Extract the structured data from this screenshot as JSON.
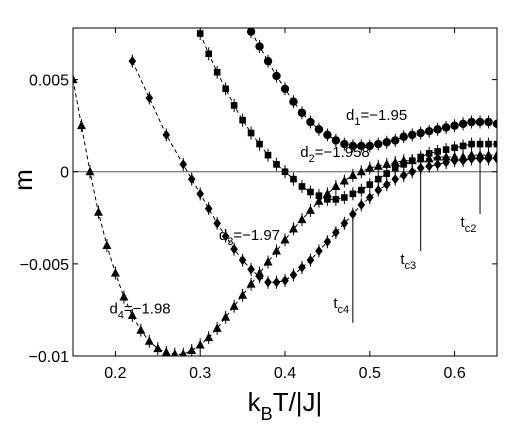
{
  "chart_data": {
    "type": "scatter",
    "xlabel": {
      "main": "k",
      "sub": "B",
      "rest": "T/|J|"
    },
    "ylabel": "m",
    "xlim": [
      0.15,
      0.65
    ],
    "ylim": [
      -0.01,
      0.0078
    ],
    "xticks": [
      {
        "value": 0.2,
        "label": "0.2"
      },
      {
        "value": 0.3,
        "label": "0.3"
      },
      {
        "value": 0.4,
        "label": "0.4"
      },
      {
        "value": 0.5,
        "label": "0.5"
      },
      {
        "value": 0.6,
        "label": "0.6"
      }
    ],
    "yticks": [
      {
        "value": 0.005,
        "label": "0.005"
      },
      {
        "value": 0,
        "label": "0"
      },
      {
        "value": -0.005,
        "label": "−0.005"
      },
      {
        "value": -0.01,
        "label": "−0.01"
      }
    ],
    "grid": false,
    "reference_line": 0,
    "series": [
      {
        "marker": "circle",
        "label": {
          "main": "d",
          "sub": "1",
          "rest": "=−1.95"
        },
        "label_at": [
          0.472,
          0.0028
        ],
        "x": [
          0.36,
          0.37,
          0.38,
          0.39,
          0.4,
          0.41,
          0.42,
          0.43,
          0.44,
          0.45,
          0.46,
          0.47,
          0.48,
          0.49,
          0.5,
          0.51,
          0.52,
          0.53,
          0.54,
          0.55,
          0.56,
          0.57,
          0.58,
          0.59,
          0.6,
          0.61,
          0.62,
          0.63,
          0.64,
          0.65
        ],
        "y": [
          0.0076,
          0.0068,
          0.006,
          0.0052,
          0.0045,
          0.0038,
          0.0032,
          0.0027,
          0.0023,
          0.002,
          0.0017,
          0.0015,
          0.0014,
          0.0014,
          0.0014,
          0.0015,
          0.0016,
          0.0017,
          0.0019,
          0.002,
          0.0021,
          0.0022,
          0.0023,
          0.0024,
          0.0025,
          0.0026,
          0.0027,
          0.0027,
          0.0027,
          0.0026
        ]
      },
      {
        "marker": "square",
        "label": {
          "main": "d",
          "sub": "2",
          "rest": "=−1.958"
        },
        "label_at": [
          0.418,
          0.0008
        ],
        "x": [
          0.3,
          0.31,
          0.32,
          0.33,
          0.34,
          0.35,
          0.36,
          0.37,
          0.38,
          0.39,
          0.4,
          0.41,
          0.42,
          0.43,
          0.44,
          0.45,
          0.46,
          0.47,
          0.48,
          0.49,
          0.5,
          0.51,
          0.52,
          0.53,
          0.54,
          0.55,
          0.56,
          0.57,
          0.58,
          0.59,
          0.6,
          0.61,
          0.62,
          0.63,
          0.64,
          0.65
        ],
        "y": [
          0.0075,
          0.0064,
          0.0054,
          0.0045,
          0.0036,
          0.0028,
          0.0021,
          0.0015,
          0.0009,
          0.0004,
          0.0,
          -0.0004,
          -0.0008,
          -0.0011,
          -0.0013,
          -0.0015,
          -0.0015,
          -0.0014,
          -0.0012,
          -0.001,
          -0.0007,
          -0.0004,
          -0.0001,
          0.0002,
          0.0004,
          0.0006,
          0.0008,
          0.001,
          0.0011,
          0.0012,
          0.0013,
          0.0014,
          0.0015,
          0.0015,
          0.0015,
          0.0015
        ]
      },
      {
        "marker": "diamond",
        "label": {
          "main": "d",
          "sub": "3",
          "rest": "=−1.97"
        },
        "label_at": [
          0.322,
          -0.0037
        ],
        "x": [
          0.22,
          0.24,
          0.26,
          0.28,
          0.29,
          0.3,
          0.31,
          0.32,
          0.33,
          0.34,
          0.35,
          0.36,
          0.37,
          0.38,
          0.39,
          0.4,
          0.41,
          0.42,
          0.43,
          0.44,
          0.45,
          0.46,
          0.47,
          0.48,
          0.49,
          0.5,
          0.51,
          0.52,
          0.53,
          0.54,
          0.55,
          0.56,
          0.57,
          0.58,
          0.59,
          0.6,
          0.61,
          0.62,
          0.63,
          0.64,
          0.65
        ],
        "y": [
          0.006,
          0.004,
          0.002,
          0.0004,
          -0.0004,
          -0.0012,
          -0.002,
          -0.0028,
          -0.0035,
          -0.0042,
          -0.0048,
          -0.0053,
          -0.0057,
          -0.006,
          -0.006,
          -0.0059,
          -0.0056,
          -0.0052,
          -0.0048,
          -0.0043,
          -0.0038,
          -0.0033,
          -0.0028,
          -0.0023,
          -0.0018,
          -0.0014,
          -0.001,
          -0.0007,
          -0.0004,
          -0.0002,
          0.0,
          0.0002,
          0.0003,
          0.0004,
          0.0005,
          0.0006,
          0.0006,
          0.0007,
          0.0007,
          0.0007,
          0.0007
        ]
      },
      {
        "marker": "triangle",
        "label": {
          "main": "d",
          "sub": "4",
          "rest": "=−1.98"
        },
        "label_at": [
          0.193,
          -0.0077
        ],
        "x": [
          0.15,
          0.16,
          0.17,
          0.18,
          0.19,
          0.2,
          0.21,
          0.22,
          0.23,
          0.24,
          0.25,
          0.26,
          0.27,
          0.28,
          0.29,
          0.3,
          0.31,
          0.32,
          0.33,
          0.34,
          0.35,
          0.36,
          0.37,
          0.38,
          0.39,
          0.4,
          0.41,
          0.42,
          0.43,
          0.44,
          0.45,
          0.46,
          0.47,
          0.48,
          0.49,
          0.5,
          0.51,
          0.52,
          0.53,
          0.54,
          0.55,
          0.56,
          0.57,
          0.58,
          0.59,
          0.6,
          0.61,
          0.62,
          0.63,
          0.64,
          0.65
        ],
        "y": [
          0.005,
          0.0025,
          0.0,
          -0.0022,
          -0.004,
          -0.0055,
          -0.0068,
          -0.0078,
          -0.0086,
          -0.0092,
          -0.0096,
          -0.0098,
          -0.0099,
          -0.0099,
          -0.0097,
          -0.0094,
          -0.009,
          -0.0085,
          -0.0079,
          -0.0073,
          -0.0067,
          -0.0061,
          -0.0055,
          -0.0049,
          -0.0043,
          -0.0037,
          -0.0031,
          -0.0026,
          -0.0021,
          -0.0016,
          -0.0012,
          -0.0008,
          -0.0005,
          -0.0002,
          0.0,
          0.0002,
          0.0003,
          0.0004,
          0.0005,
          0.0006,
          0.0006,
          0.0007,
          0.0007,
          0.0008,
          0.0008,
          0.0008,
          0.0008,
          0.0009,
          0.0009,
          0.0009,
          0.0009
        ]
      }
    ],
    "critical_markers": [
      {
        "label": {
          "main": "t",
          "sub": "c2"
        },
        "x": 0.63,
        "y_top": 0.0008,
        "y_bottom": -0.0023,
        "label_at": [
          0.607,
          -0.003
        ]
      },
      {
        "label": {
          "main": "t",
          "sub": "c3"
        },
        "x": 0.56,
        "y_top": 0.0002,
        "y_bottom": -0.0043,
        "label_at": [
          0.536,
          -0.005
        ]
      },
      {
        "label": {
          "main": "t",
          "sub": "c4"
        },
        "x": 0.48,
        "y_top": -0.0023,
        "y_bottom": -0.0082,
        "label_at": [
          0.457,
          -0.0074
        ]
      }
    ]
  }
}
